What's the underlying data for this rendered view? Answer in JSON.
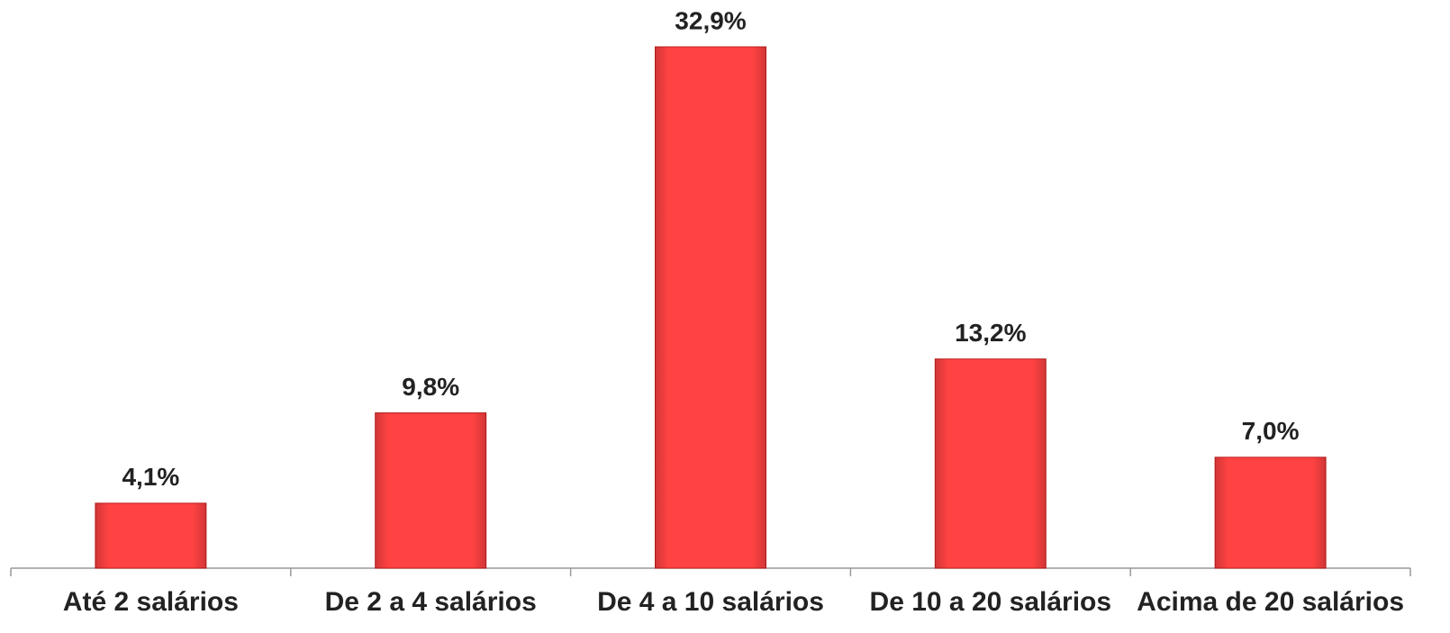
{
  "chart_data": {
    "type": "bar",
    "categories": [
      "Até 2 salários",
      "De 2 a 4 salários",
      "De 4 a 10 salários",
      "De 10 a 20 salários",
      "Acima de 20 salários"
    ],
    "values": [
      4.1,
      9.8,
      32.9,
      13.2,
      7.0
    ],
    "value_labels": [
      "4,1%",
      "9,8%",
      "32,9%",
      "13,2%",
      "7,0%"
    ],
    "color": "#ff4242"
  }
}
